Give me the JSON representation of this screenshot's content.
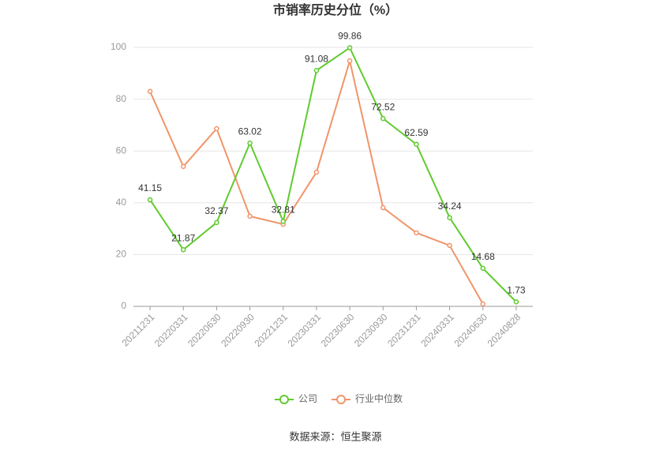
{
  "chart_data": {
    "type": "line",
    "title": "市销率历史分位（%）",
    "categories": [
      "20211231",
      "20220331",
      "20220630",
      "20220930",
      "20221231",
      "20230331",
      "20230630",
      "20230930",
      "20231231",
      "20240331",
      "20240630",
      "20240828"
    ],
    "series": [
      {
        "name": "公司",
        "color": "#5fcb2e",
        "values": [
          41.15,
          21.87,
          32.37,
          63.02,
          32.81,
          91.08,
          99.86,
          72.52,
          62.59,
          34.24,
          14.68,
          1.73
        ]
      },
      {
        "name": "行业中位数",
        "color": "#f0956a",
        "values": [
          83,
          54,
          68.6,
          34.8,
          31.7,
          51.8,
          94.8,
          38.1,
          28.4,
          23.5,
          0.9,
          null
        ]
      }
    ],
    "ylim": [
      0,
      100
    ],
    "yticks": [
      0,
      20,
      40,
      60,
      80,
      100
    ],
    "grid": true,
    "source": "数据来源：恒生聚源"
  }
}
